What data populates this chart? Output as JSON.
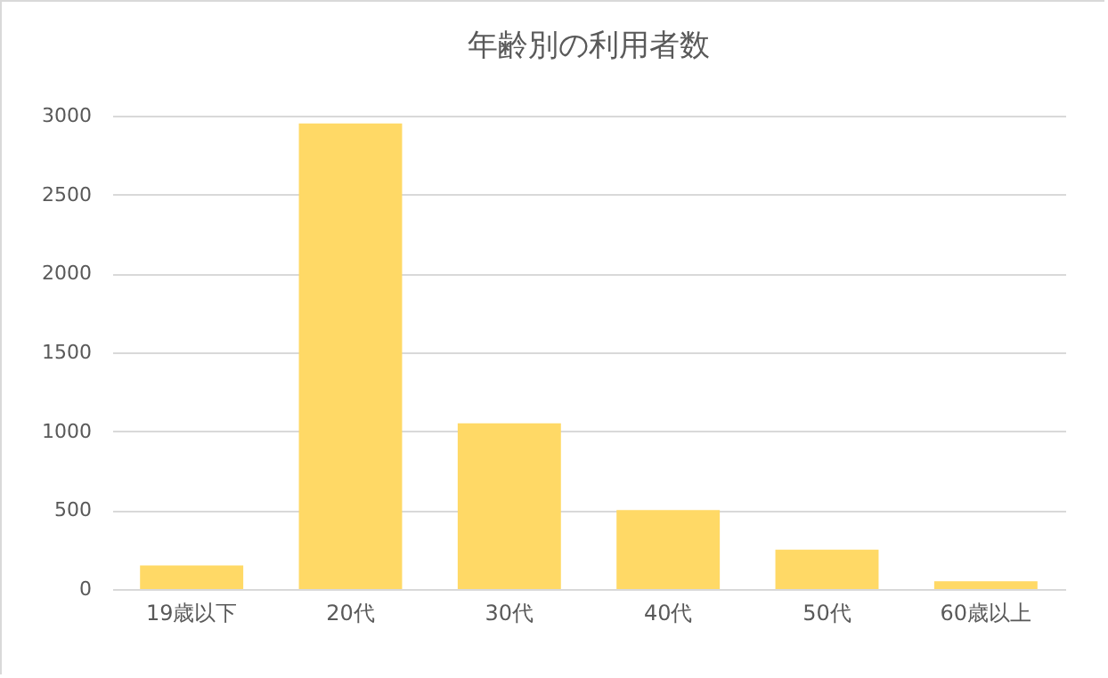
{
  "chart_data": {
    "type": "bar",
    "title": "年齢別の利用者数",
    "categories": [
      "19歳以下",
      "20代",
      "30代",
      "40代",
      "50代",
      "60歳以上"
    ],
    "values": [
      150,
      2950,
      1050,
      500,
      250,
      50
    ],
    "color": "#ffd966",
    "ylim": [
      0,
      3000
    ],
    "yticks": [
      0,
      500,
      1000,
      1500,
      2000,
      2500,
      3000
    ],
    "grid": "y"
  }
}
